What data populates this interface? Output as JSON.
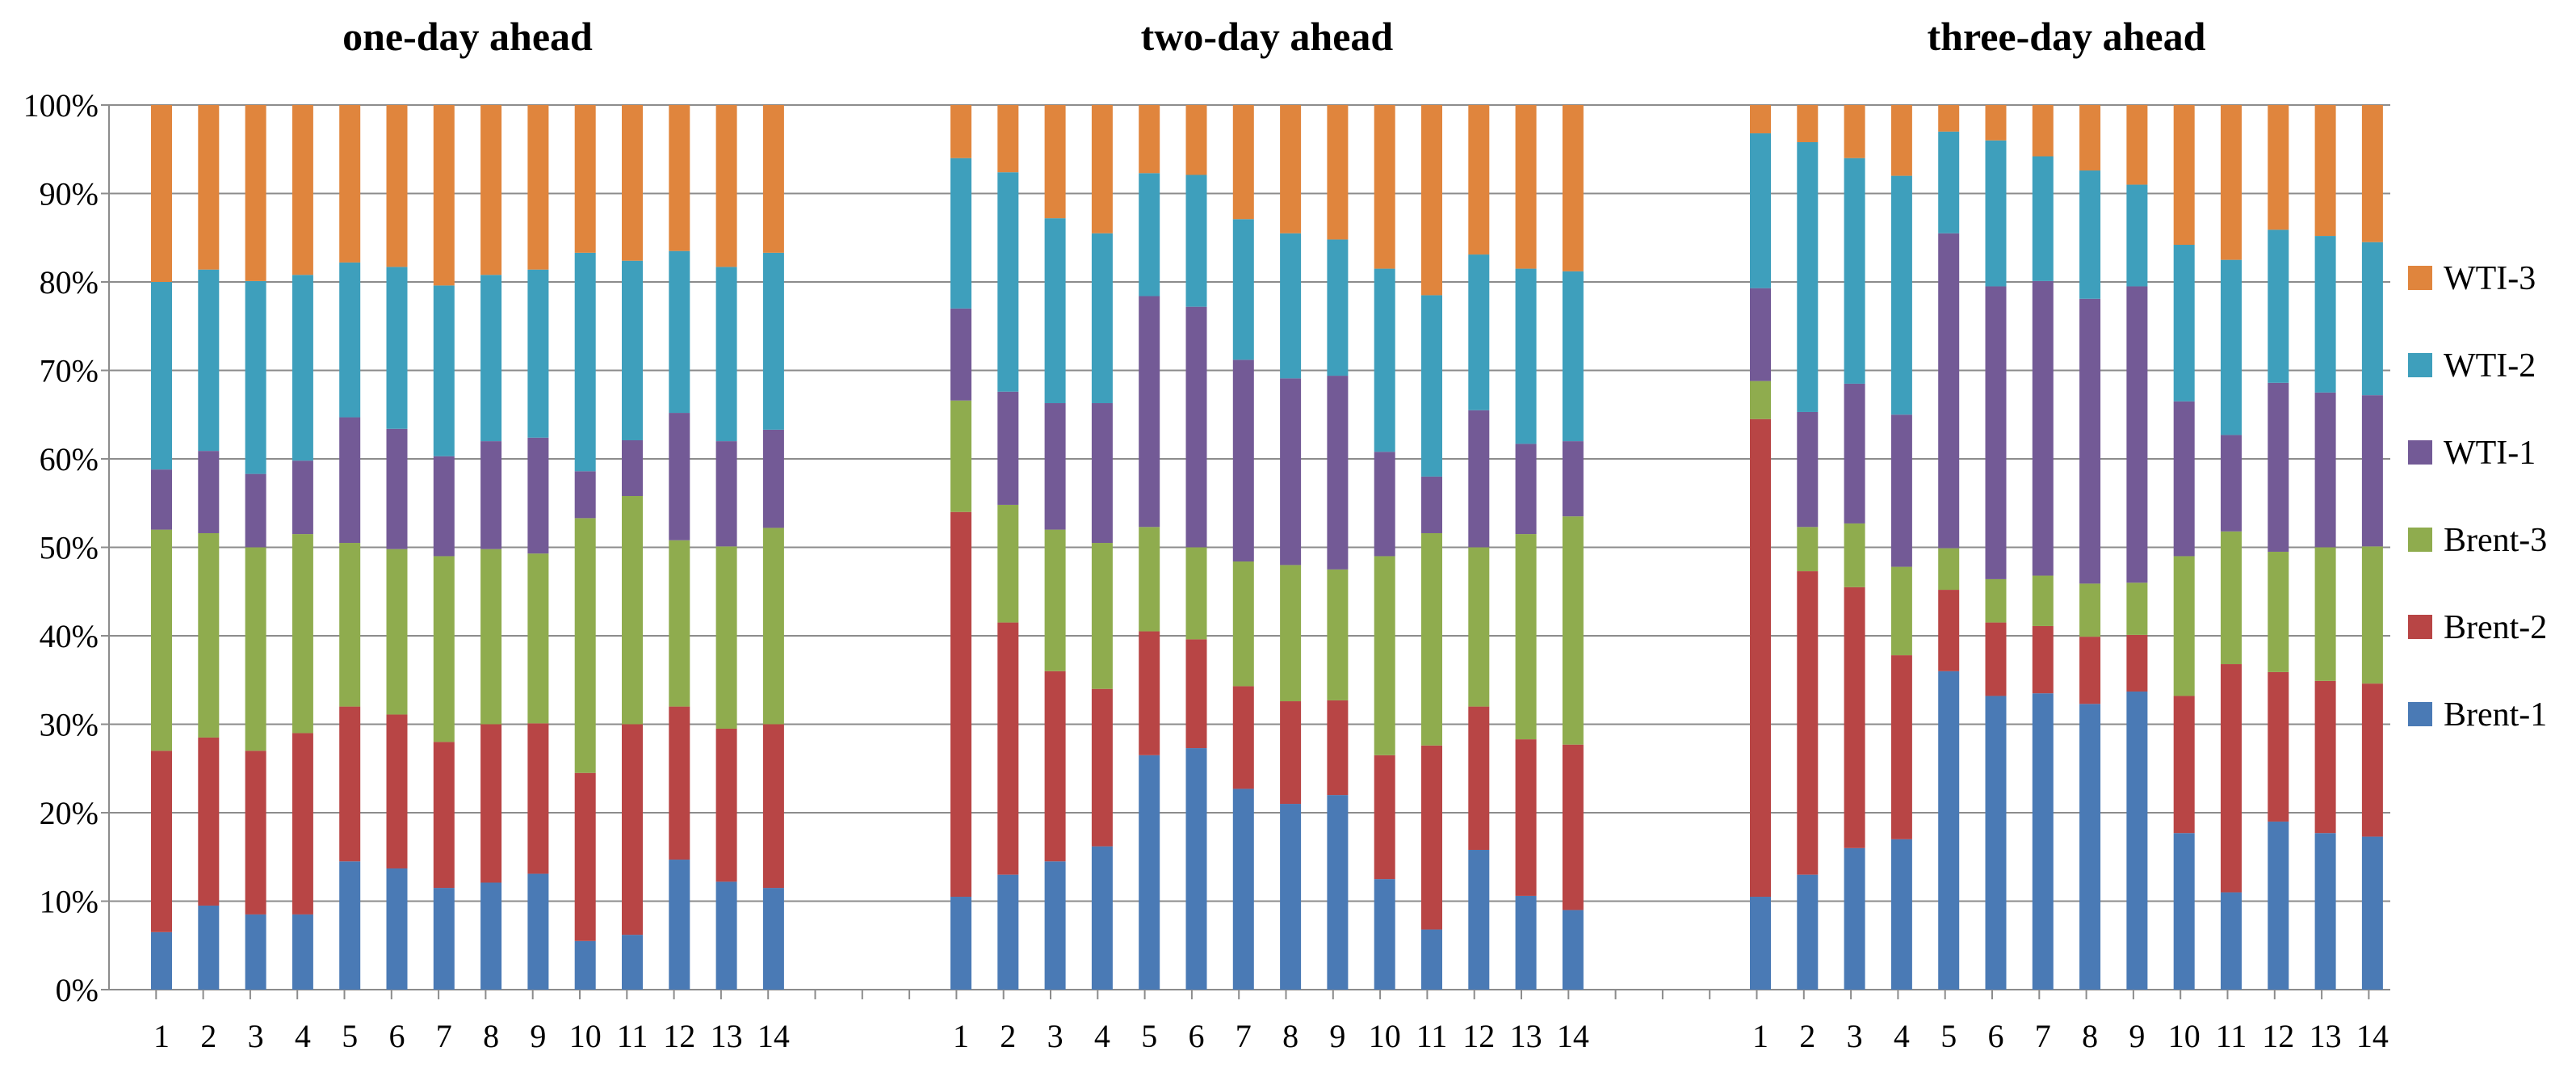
{
  "chart_data": {
    "type": "bar",
    "stacked": true,
    "percent": true,
    "ylim": [
      0,
      100
    ],
    "y_ticks": [
      "0%",
      "10%",
      "20%",
      "30%",
      "40%",
      "50%",
      "60%",
      "70%",
      "80%",
      "90%",
      "100%"
    ],
    "grid": "horizontal",
    "legend_position": "right",
    "colors": {
      "Brent-1": "#4a7ab5",
      "Brent-2": "#b84545",
      "Brent-3": "#8fac4e",
      "WTI-1": "#735a96",
      "WTI-2": "#3e9fbc",
      "WTI-3": "#e0853d"
    },
    "legend": [
      "WTI-3",
      "WTI-2",
      "WTI-1",
      "Brent-3",
      "Brent-2",
      "Brent-1"
    ],
    "panels": [
      {
        "title": "one-day ahead",
        "categories": [
          "1",
          "2",
          "3",
          "4",
          "5",
          "6",
          "7",
          "8",
          "9",
          "10",
          "11",
          "12",
          "13",
          "14"
        ],
        "series": [
          {
            "name": "Brent-1",
            "values": [
              6.5,
              9.5,
              8.5,
              8.5,
              14.5,
              13.7,
              11.5,
              12.1,
              13.1,
              5.5,
              6.2,
              14.7,
              12.2,
              11.5
            ]
          },
          {
            "name": "Brent-2",
            "values": [
              20.5,
              19.0,
              18.5,
              20.5,
              17.5,
              17.4,
              16.5,
              17.9,
              17.0,
              19.0,
              23.8,
              17.3,
              17.3,
              18.5
            ]
          },
          {
            "name": "Brent-3",
            "values": [
              25.0,
              23.1,
              23.0,
              22.5,
              18.5,
              18.7,
              21.0,
              19.8,
              19.2,
              28.8,
              25.8,
              18.8,
              20.6,
              22.2
            ]
          },
          {
            "name": "WTI-1",
            "values": [
              6.8,
              9.3,
              8.3,
              8.3,
              14.2,
              13.6,
              11.3,
              12.2,
              13.1,
              5.3,
              6.3,
              14.4,
              11.9,
              11.1
            ]
          },
          {
            "name": "WTI-2",
            "values": [
              21.2,
              20.5,
              21.8,
              21.0,
              17.5,
              18.3,
              19.3,
              18.8,
              19.0,
              24.7,
              20.3,
              18.3,
              19.7,
              20.0
            ]
          },
          {
            "name": "WTI-3",
            "values": [
              20.0,
              18.6,
              19.9,
              19.2,
              17.8,
              18.3,
              20.4,
              19.2,
              18.6,
              16.7,
              17.6,
              16.5,
              18.3,
              16.7
            ]
          }
        ]
      },
      {
        "title": "two-day ahead",
        "categories": [
          "1",
          "2",
          "3",
          "4",
          "5",
          "6",
          "7",
          "8",
          "9",
          "10",
          "11",
          "12",
          "13",
          "14"
        ],
        "series": [
          {
            "name": "Brent-1",
            "values": [
              10.5,
              13.0,
              14.5,
              16.2,
              26.5,
              27.3,
              22.7,
              21.0,
              22.0,
              12.5,
              6.8,
              15.8,
              10.6,
              9.0
            ]
          },
          {
            "name": "Brent-2",
            "values": [
              43.5,
              28.5,
              21.5,
              17.8,
              14.0,
              12.3,
              11.6,
              11.6,
              10.7,
              14.0,
              20.8,
              16.2,
              17.7,
              18.7
            ]
          },
          {
            "name": "Brent-3",
            "values": [
              12.6,
              13.3,
              16.0,
              16.5,
              11.8,
              10.4,
              14.1,
              15.4,
              14.8,
              22.5,
              24.0,
              18.0,
              23.2,
              25.8
            ]
          },
          {
            "name": "WTI-1",
            "values": [
              10.4,
              12.8,
              14.3,
              15.8,
              26.1,
              27.2,
              22.8,
              21.1,
              21.9,
              11.8,
              6.4,
              15.5,
              10.2,
              8.5
            ]
          },
          {
            "name": "WTI-2",
            "values": [
              17.0,
              24.8,
              20.9,
              19.2,
              13.9,
              14.9,
              15.9,
              16.4,
              15.4,
              20.7,
              20.5,
              17.6,
              19.8,
              19.2
            ]
          },
          {
            "name": "WTI-3",
            "values": [
              6.0,
              7.6,
              12.8,
              14.5,
              7.7,
              7.9,
              12.9,
              14.5,
              15.2,
              18.5,
              21.5,
              16.9,
              18.5,
              18.8
            ]
          }
        ]
      },
      {
        "title": "three-day ahead",
        "categories": [
          "1",
          "2",
          "3",
          "4",
          "5",
          "6",
          "7",
          "8",
          "9",
          "10",
          "11",
          "12",
          "13",
          "14"
        ],
        "series": [
          {
            "name": "Brent-1",
            "values": [
              10.5,
              13.0,
              16.0,
              17.0,
              36.0,
              33.2,
              33.5,
              32.3,
              33.7,
              17.7,
              11.0,
              19.0,
              17.7,
              17.3
            ]
          },
          {
            "name": "Brent-2",
            "values": [
              54.0,
              34.3,
              29.5,
              20.8,
              9.2,
              8.3,
              7.6,
              7.6,
              6.4,
              15.5,
              25.8,
              16.9,
              17.2,
              17.3
            ]
          },
          {
            "name": "Brent-3",
            "values": [
              4.3,
              5.0,
              7.2,
              10.0,
              4.7,
              4.9,
              5.7,
              6.0,
              5.9,
              15.8,
              15.0,
              13.6,
              15.1,
              15.5
            ]
          },
          {
            "name": "WTI-1",
            "values": [
              10.5,
              13.0,
              15.8,
              17.2,
              35.6,
              33.1,
              33.3,
              32.2,
              33.5,
              17.5,
              10.9,
              19.1,
              17.5,
              17.1
            ]
          },
          {
            "name": "WTI-2",
            "values": [
              17.5,
              30.5,
              25.5,
              27.0,
              11.5,
              16.5,
              14.1,
              14.5,
              11.5,
              17.7,
              19.8,
              17.3,
              17.7,
              17.3
            ]
          },
          {
            "name": "WTI-3",
            "values": [
              3.2,
              4.2,
              6.0,
              8.0,
              3.0,
              4.0,
              5.8,
              7.4,
              9.0,
              15.8,
              17.5,
              14.1,
              14.8,
              15.5
            ]
          }
        ]
      }
    ]
  }
}
